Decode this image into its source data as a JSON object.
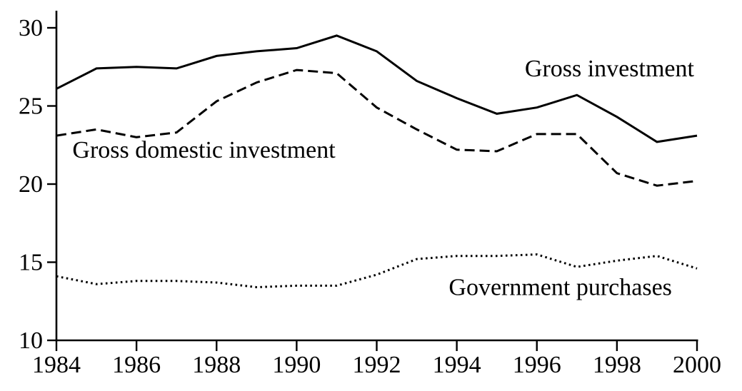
{
  "figure": {
    "colors": {
      "ink": "#000000",
      "background": "#ffffff"
    }
  },
  "chart_data": {
    "type": "line",
    "title": "",
    "xlabel": "",
    "ylabel": "",
    "xlim": [
      1984,
      2000
    ],
    "ylim": [
      10,
      30
    ],
    "grid": false,
    "legend": "inline-text-annotations",
    "x": [
      1984,
      1985,
      1986,
      1987,
      1988,
      1989,
      1990,
      1991,
      1992,
      1993,
      1994,
      1995,
      1996,
      1997,
      1998,
      1999,
      2000
    ],
    "x_ticks": [
      1984,
      1986,
      1988,
      1990,
      1992,
      1994,
      1996,
      1998,
      2000
    ],
    "y_ticks": [
      30,
      25,
      20,
      15,
      10
    ],
    "series": [
      {
        "name": "Gross investment",
        "line_style": "solid",
        "color": "#000000",
        "values": [
          26.1,
          27.4,
          27.5,
          27.4,
          28.2,
          28.5,
          28.7,
          29.5,
          28.5,
          26.6,
          25.5,
          24.5,
          24.9,
          25.7,
          24.3,
          22.7,
          23.1
        ]
      },
      {
        "name": "Gross domestic investment",
        "line_style": "dashed",
        "color": "#000000",
        "values": [
          23.1,
          23.5,
          23.0,
          23.3,
          25.3,
          26.5,
          27.3,
          27.1,
          24.9,
          23.5,
          22.2,
          22.1,
          23.2,
          23.2,
          20.7,
          19.9,
          20.2
        ]
      },
      {
        "name": "Government purchases",
        "line_style": "dotted",
        "color": "#000000",
        "values": [
          14.1,
          13.6,
          13.8,
          13.8,
          13.7,
          13.4,
          13.5,
          13.5,
          14.2,
          15.2,
          15.4,
          15.4,
          15.5,
          14.7,
          15.1,
          15.4,
          14.6
        ]
      }
    ],
    "annotations": [
      {
        "text": "Gross investment",
        "x": 1995.7,
        "y": 26.9,
        "anchor": "start"
      },
      {
        "text": "Gross domestic investment",
        "x": 1984.4,
        "y": 21.7,
        "anchor": "start"
      },
      {
        "text": "Government purchases",
        "x": 1993.8,
        "y": 12.9,
        "anchor": "start"
      }
    ]
  }
}
